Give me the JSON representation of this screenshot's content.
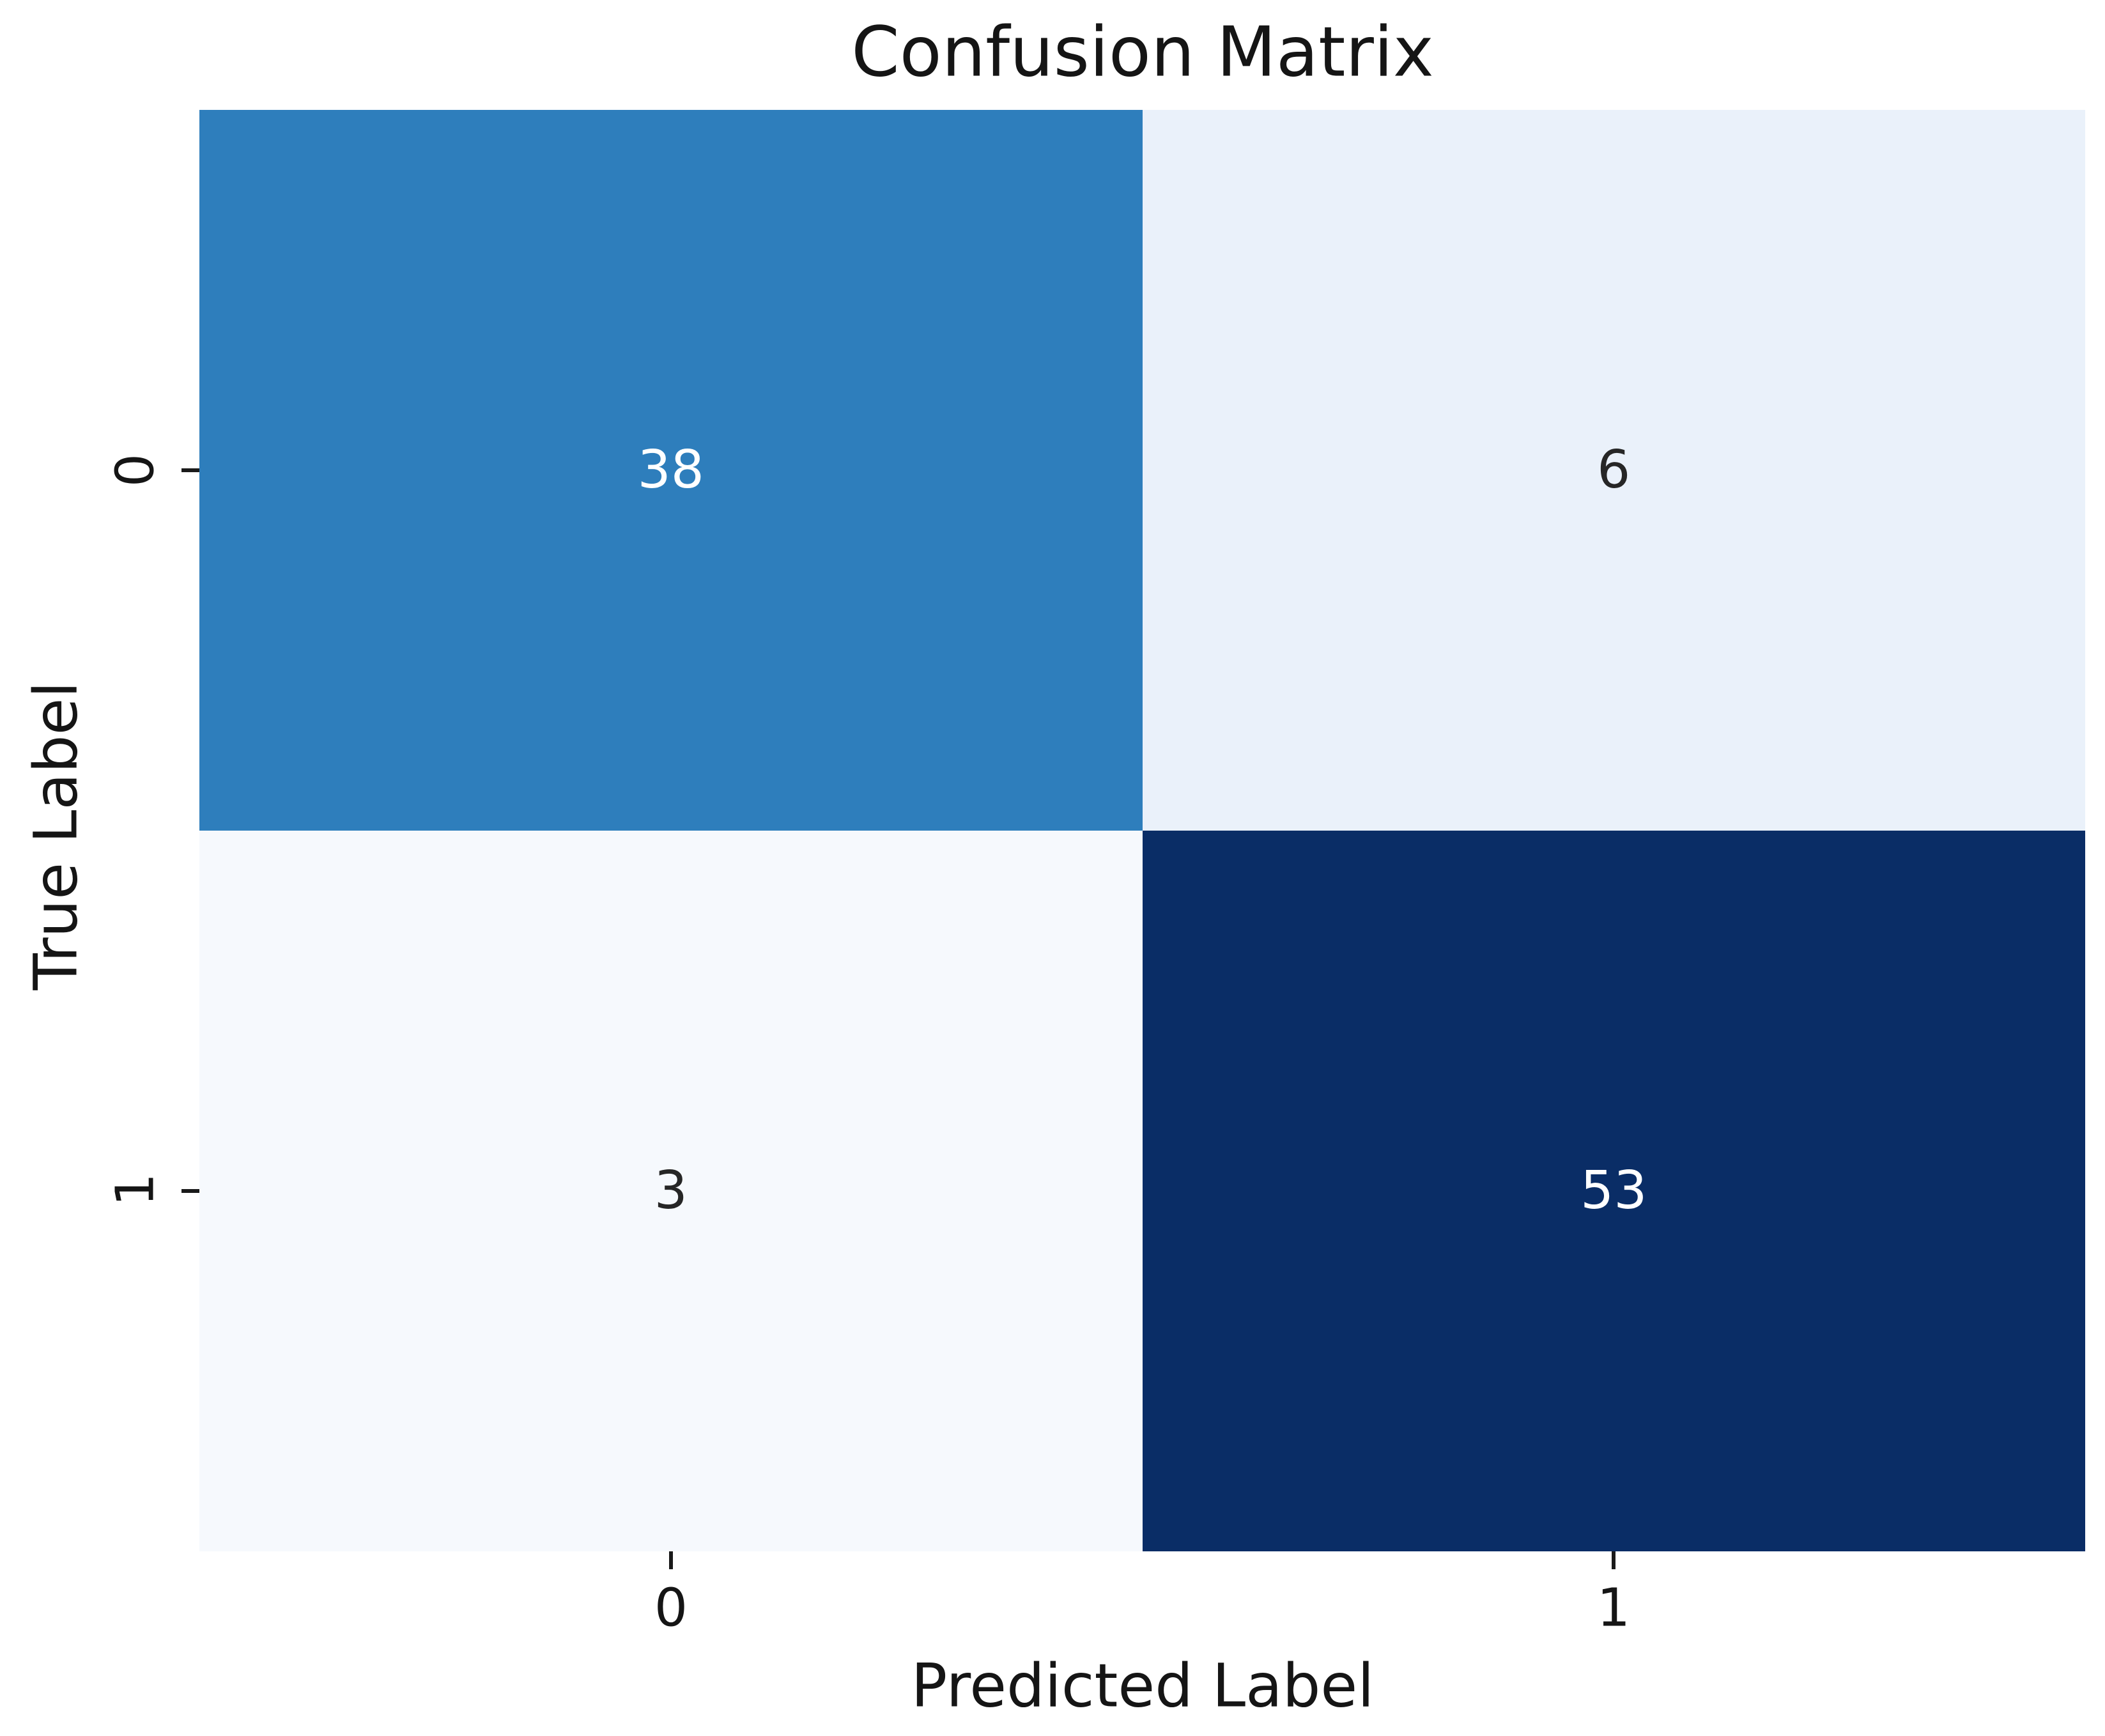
{
  "chart_data": {
    "type": "heatmap",
    "title": "Confusion Matrix",
    "xlabel": "Predicted Label",
    "ylabel": "True Label",
    "x_ticks": [
      "0",
      "1"
    ],
    "y_ticks": [
      "0",
      "1"
    ],
    "matrix": [
      [
        38,
        6
      ],
      [
        3,
        53
      ]
    ],
    "vmin": 3,
    "vmax": 53,
    "colormap": "Blues",
    "legend": "none",
    "grid": false,
    "background": "#ffffff",
    "cells": [
      {
        "true_label": "0",
        "predicted_label": "0",
        "value": 38,
        "bg": "#2e7ebc",
        "fg": "#ffffff"
      },
      {
        "true_label": "0",
        "predicted_label": "1",
        "value": 6,
        "bg": "#eaf1fa",
        "fg": "#262626"
      },
      {
        "true_label": "1",
        "predicted_label": "0",
        "value": 3,
        "bg": "#f6f9fd",
        "fg": "#262626"
      },
      {
        "true_label": "1",
        "predicted_label": "1",
        "value": 53,
        "bg": "#0a2d66",
        "fg": "#ffffff"
      }
    ]
  }
}
